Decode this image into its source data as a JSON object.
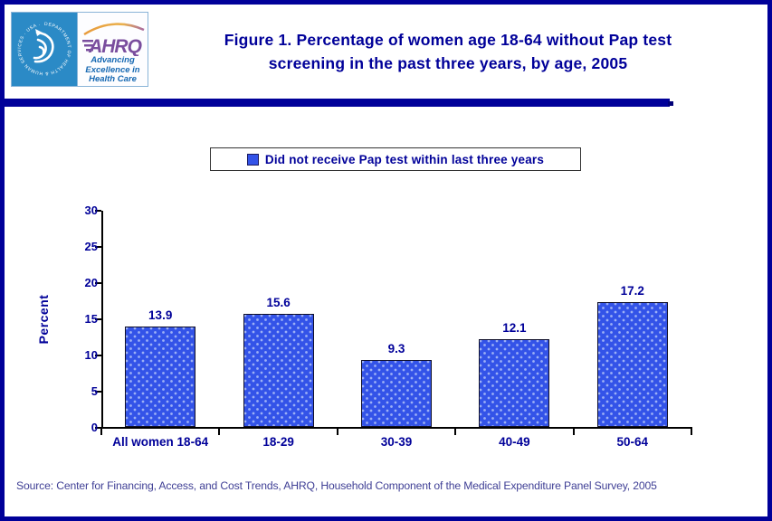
{
  "header": {
    "logo": {
      "hhs_seal_text": "DEPARTMENT OF HEALTH & HUMAN SERVICES · USA ·",
      "ahrq_acronym": "AHRQ",
      "tagline_line1": "Advancing",
      "tagline_line2": "Excellence in",
      "tagline_line3": "Health Care"
    },
    "title_line1": "Figure 1. Percentage of women age 18-64 without Pap test",
    "title_line2": "screening in the past three years, by age, 2005"
  },
  "legend": {
    "label": "Did not receive Pap test within last three years"
  },
  "chart_data": {
    "type": "bar",
    "title": "Figure 1. Percentage of women age 18-64 without Pap test screening in the past three years, by age, 2005",
    "categories": [
      "All women 18-64",
      "18-29",
      "30-39",
      "40-49",
      "50-64"
    ],
    "values": [
      13.9,
      15.6,
      9.3,
      12.1,
      17.2
    ],
    "xlabel": "",
    "ylabel": "Percent",
    "ylim": [
      0,
      30
    ],
    "yticks": [
      0,
      5,
      10,
      15,
      20,
      25,
      30
    ],
    "legend": [
      "Did not receive Pap test within last three years"
    ],
    "legend_position": "top-center",
    "grid": false,
    "bar_color": "#3353e8",
    "axis_color": "#000000",
    "label_color": "#000099"
  },
  "source": "Source: Center for Financing, Access, and Cost Trends, AHRQ, Household Component of the Medical Expenditure Panel Survey, 2005",
  "colors": {
    "navy": "#000099",
    "bar_blue": "#3353e8",
    "hhs_blue": "#2b8ac6",
    "ahrq_purple": "#7a4e9e",
    "swoosh_orange": "#e89b3c",
    "tagline_blue": "#1668b2"
  }
}
